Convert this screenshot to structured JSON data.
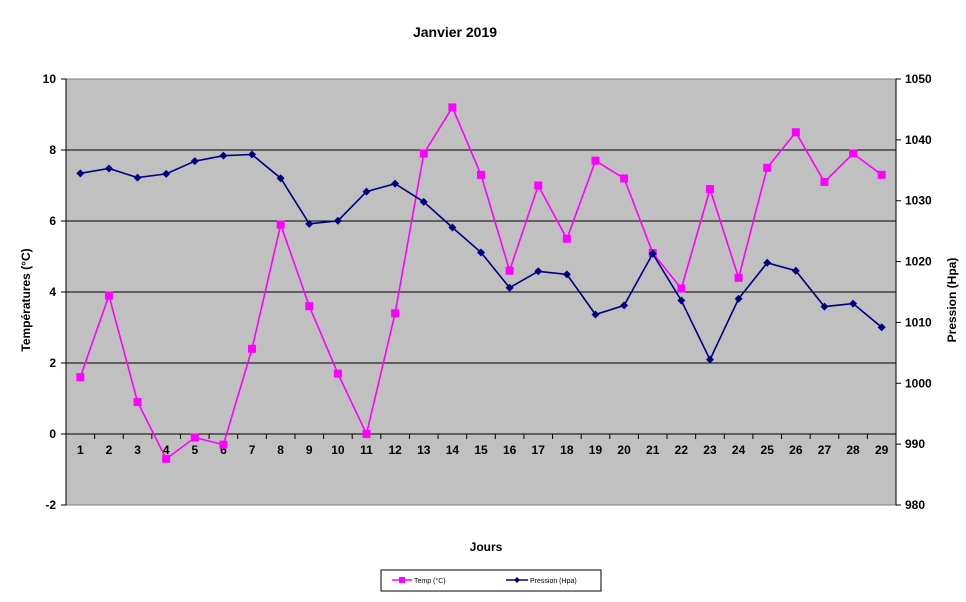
{
  "chart_data": {
    "type": "line",
    "title": "Janvier 2019",
    "xlabel": "Jours",
    "ylabel": "Températures (°C)",
    "y2label": "Pression (Hpa)",
    "x": [
      1,
      2,
      3,
      4,
      5,
      6,
      7,
      8,
      9,
      10,
      11,
      12,
      13,
      14,
      15,
      16,
      17,
      18,
      19,
      20,
      21,
      22,
      23,
      24,
      25,
      26,
      27,
      28,
      29
    ],
    "ylim": [
      -2,
      10
    ],
    "yticks": [
      -2,
      0,
      2,
      4,
      6,
      8,
      10
    ],
    "y2lim": [
      980,
      1050
    ],
    "y2ticks": [
      980,
      990,
      1000,
      1010,
      1020,
      1030,
      1040,
      1050
    ],
    "grid": "horizontal",
    "plot_background": "#c0c0c0",
    "legend_position": "bottom",
    "series": [
      {
        "name": "Temp (°C)",
        "axis": "left",
        "color": "#ff00ff",
        "marker": "square",
        "values": [
          1.6,
          3.9,
          0.9,
          -0.7,
          -0.1,
          -0.3,
          2.4,
          5.9,
          3.6,
          1.7,
          0.0,
          3.4,
          7.9,
          9.2,
          7.3,
          4.6,
          7.0,
          5.5,
          7.7,
          7.2,
          5.1,
          4.1,
          6.9,
          4.4,
          7.5,
          8.5,
          7.1,
          7.9,
          7.3
        ]
      },
      {
        "name": "Pression (Hpa)",
        "axis": "right",
        "color": "#000080",
        "marker": "diamond",
        "values": [
          1034.5,
          1035.3,
          1033.8,
          1034.4,
          1036.5,
          1037.4,
          1037.6,
          1033.7,
          1026.2,
          1026.7,
          1031.5,
          1032.8,
          1029.8,
          1025.6,
          1021.5,
          1015.7,
          1018.4,
          1017.9,
          1011.3,
          1012.8,
          1021.3,
          1013.6,
          1003.9,
          1013.9,
          1019.8,
          1018.5,
          1012.6,
          1013.1,
          1009.2
        ]
      }
    ]
  }
}
